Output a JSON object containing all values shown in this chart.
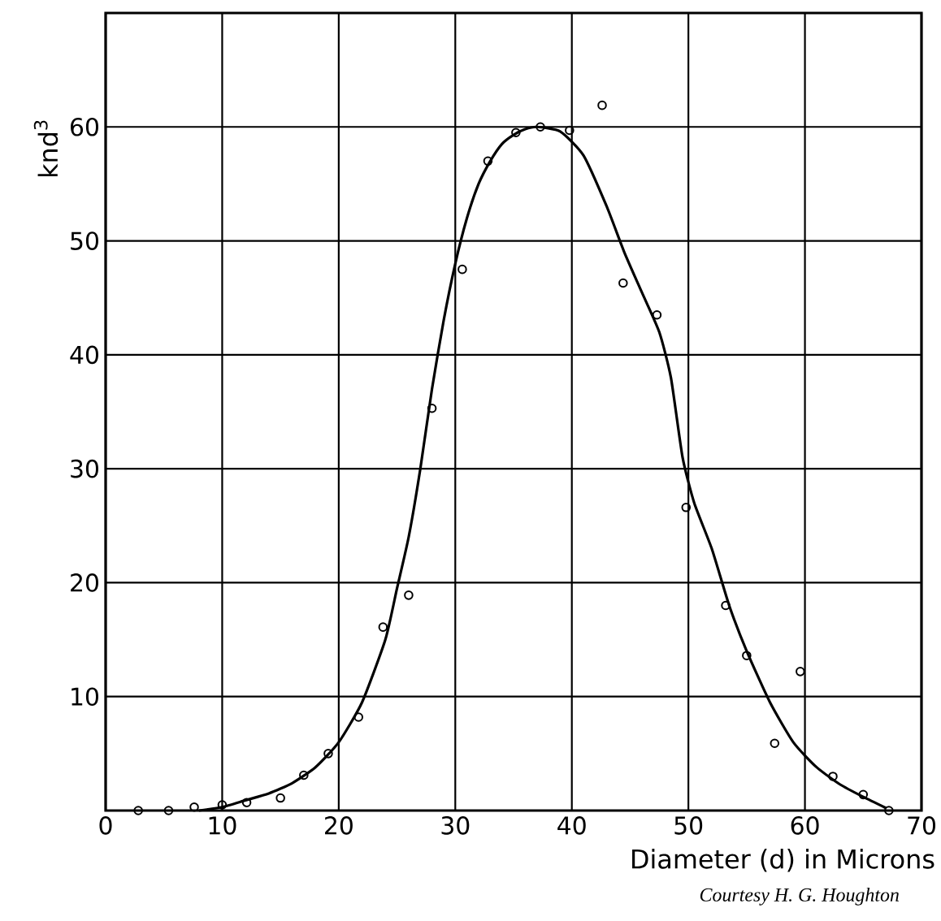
{
  "chart_data": {
    "type": "scatter",
    "xlabel": "Diameter (d) in Microns",
    "ylabel": "knd$^{3}$",
    "annotations": [
      "Courtesy H. G. Houghton"
    ],
    "xlim": [
      0,
      70
    ],
    "ylim": [
      0,
      70
    ],
    "xticks": [
      0,
      10,
      20,
      30,
      40,
      50,
      60,
      70
    ],
    "yticks": [
      10,
      20,
      30,
      40,
      50,
      60
    ],
    "grid": true,
    "series": [
      {
        "marker": "circle",
        "color": "#000000",
        "x": [
          2.8,
          5.4,
          7.6,
          10.0,
          12.1,
          15.0,
          17.0,
          19.1,
          21.7,
          23.8,
          26.0,
          28.0,
          30.6,
          32.8,
          35.2,
          37.3,
          39.8,
          42.6,
          44.4,
          47.3,
          49.8,
          53.2,
          55.0,
          57.4,
          59.6,
          62.4,
          65.0,
          67.2
        ],
        "values": [
          0,
          0,
          0.3,
          0.5,
          0.7,
          1.1,
          3.1,
          5.0,
          8.2,
          16.1,
          18.9,
          35.3,
          47.5,
          57.0,
          59.5,
          60.0,
          59.7,
          61.9,
          46.3,
          43.5,
          26.6,
          18.0,
          13.6,
          5.9,
          12.2,
          3.0,
          1.4,
          0
        ]
      },
      {
        "type": "line",
        "marker": "none",
        "color": "#000000",
        "x": [
          8,
          10,
          12,
          14,
          16,
          18,
          20,
          22,
          24,
          25,
          26,
          27,
          28,
          29,
          30,
          31,
          32,
          33,
          34,
          35,
          36,
          37,
          39,
          41,
          43,
          44.5,
          46,
          47.5,
          48.5,
          49.5,
          50.5,
          52,
          53.5,
          55,
          57,
          59,
          61,
          63,
          65,
          67
        ],
        "values": [
          0,
          0.3,
          0.9,
          1.5,
          2.4,
          3.8,
          6,
          9.5,
          15,
          19.5,
          24,
          30,
          37,
          43,
          48,
          52,
          55,
          57,
          58.5,
          59.3,
          59.8,
          60,
          59.6,
          57.5,
          53,
          49,
          45.5,
          42,
          38,
          31,
          27,
          23,
          18,
          14,
          9.5,
          6,
          3.8,
          2.3,
          1.2,
          0.2
        ]
      }
    ]
  }
}
